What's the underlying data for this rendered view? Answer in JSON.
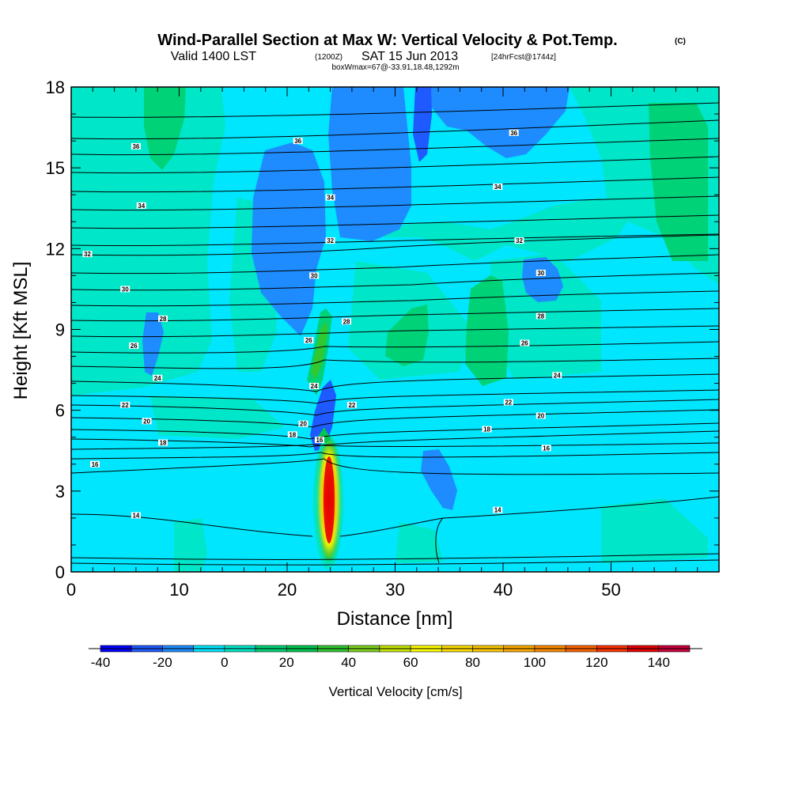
{
  "chart_data": {
    "type": "heatmap",
    "title": "Wind-Parallel Section at Max W: Vertical Velocity & Pot.Temp.",
    "title_tag": "(C)",
    "subtitle_main": "Valid 1400 LST",
    "subtitle_z": "(1200Z)",
    "subtitle_date": "SAT 15 Jun 2013",
    "subtitle_fcst": "[24hrFcst@1744z]",
    "subtitle_box": "boxWmax=67@-33.91,18.48,1292m",
    "xlabel": "Distance [nm]",
    "ylabel": "Height [Kft MSL]",
    "xlim": [
      0,
      60
    ],
    "ylim": [
      0,
      18
    ],
    "x_ticks": [
      "0",
      "10",
      "20",
      "30",
      "40",
      "50"
    ],
    "y_ticks": [
      "0",
      "3",
      "6",
      "9",
      "12",
      "15",
      "18"
    ],
    "colorbar": {
      "label": "Vertical Velocity [cm/s]",
      "ticks": [
        "-40",
        "-20",
        "0",
        "20",
        "40",
        "60",
        "80",
        "100",
        "120",
        "140"
      ],
      "range": [
        -40,
        150
      ],
      "colors": [
        "#0000ff",
        "#1e5aff",
        "#1e8cff",
        "#00e6ff",
        "#00e6c8",
        "#00d278",
        "#00c850",
        "#32c832",
        "#7dd21e",
        "#c8e600",
        "#ffff00",
        "#ffdc00",
        "#ffc800",
        "#ffaa00",
        "#ff8c00",
        "#ff6400",
        "#ff3200",
        "#e60000",
        "#c8003c"
      ]
    },
    "series": [
      {
        "name": "Vertical Velocity",
        "kind": "filled contours",
        "features": [
          {
            "value": 140,
            "x": 23.8,
            "y": 2.4,
            "note": "updraft core"
          },
          {
            "value": -30,
            "x": 23.4,
            "y": 5.4,
            "note": "downdraft"
          },
          {
            "value": 30,
            "x": 22.8,
            "y": 8.0
          },
          {
            "value": -15,
            "x": 19.5,
            "y": 13.5
          },
          {
            "value": -15,
            "x": 32.5,
            "y": 3.4
          },
          {
            "value": 15,
            "x": 39.5,
            "y": 9.5
          },
          {
            "value": 15,
            "x": 7.5,
            "y": 17.0
          }
        ]
      },
      {
        "name": "Pot.Temp.",
        "kind": "contour lines",
        "labels": [
          {
            "text": "36",
            "x": 6,
            "y": 15.8
          },
          {
            "text": "36",
            "x": 21,
            "y": 16.0
          },
          {
            "text": "36",
            "x": 41,
            "y": 16.3
          },
          {
            "text": "34",
            "x": 6.5,
            "y": 13.6
          },
          {
            "text": "34",
            "x": 24,
            "y": 13.9
          },
          {
            "text": "34",
            "x": 39.5,
            "y": 14.3
          },
          {
            "text": "32",
            "x": 1.5,
            "y": 11.8
          },
          {
            "text": "32",
            "x": 24,
            "y": 12.3
          },
          {
            "text": "32",
            "x": 41.5,
            "y": 12.3
          },
          {
            "text": "30",
            "x": 5,
            "y": 10.5
          },
          {
            "text": "30",
            "x": 22.5,
            "y": 11.0
          },
          {
            "text": "30",
            "x": 43.5,
            "y": 11.1
          },
          {
            "text": "28",
            "x": 8.5,
            "y": 9.4
          },
          {
            "text": "28",
            "x": 25.5,
            "y": 9.3
          },
          {
            "text": "28",
            "x": 43.5,
            "y": 9.5
          },
          {
            "text": "26",
            "x": 5.8,
            "y": 8.4
          },
          {
            "text": "26",
            "x": 22,
            "y": 8.6
          },
          {
            "text": "26",
            "x": 42,
            "y": 8.5
          },
          {
            "text": "24",
            "x": 8,
            "y": 7.2
          },
          {
            "text": "24",
            "x": 22.5,
            "y": 6.9
          },
          {
            "text": "24",
            "x": 45,
            "y": 7.3
          },
          {
            "text": "22",
            "x": 5,
            "y": 6.2
          },
          {
            "text": "22",
            "x": 26,
            "y": 6.2
          },
          {
            "text": "22",
            "x": 40.5,
            "y": 6.3
          },
          {
            "text": "20",
            "x": 7,
            "y": 5.6
          },
          {
            "text": "20",
            "x": 21.5,
            "y": 5.5
          },
          {
            "text": "20",
            "x": 43.5,
            "y": 5.8
          },
          {
            "text": "18",
            "x": 8.5,
            "y": 4.8
          },
          {
            "text": "18",
            "x": 20.5,
            "y": 5.1
          },
          {
            "text": "18",
            "x": 38.5,
            "y": 5.3
          },
          {
            "text": "16",
            "x": 2.2,
            "y": 4.0
          },
          {
            "text": "16",
            "x": 23,
            "y": 4.9
          },
          {
            "text": "16",
            "x": 44,
            "y": 4.6
          },
          {
            "text": "14",
            "x": 6,
            "y": 2.1
          },
          {
            "text": "14",
            "x": 39.5,
            "y": 2.3
          }
        ]
      }
    ]
  }
}
